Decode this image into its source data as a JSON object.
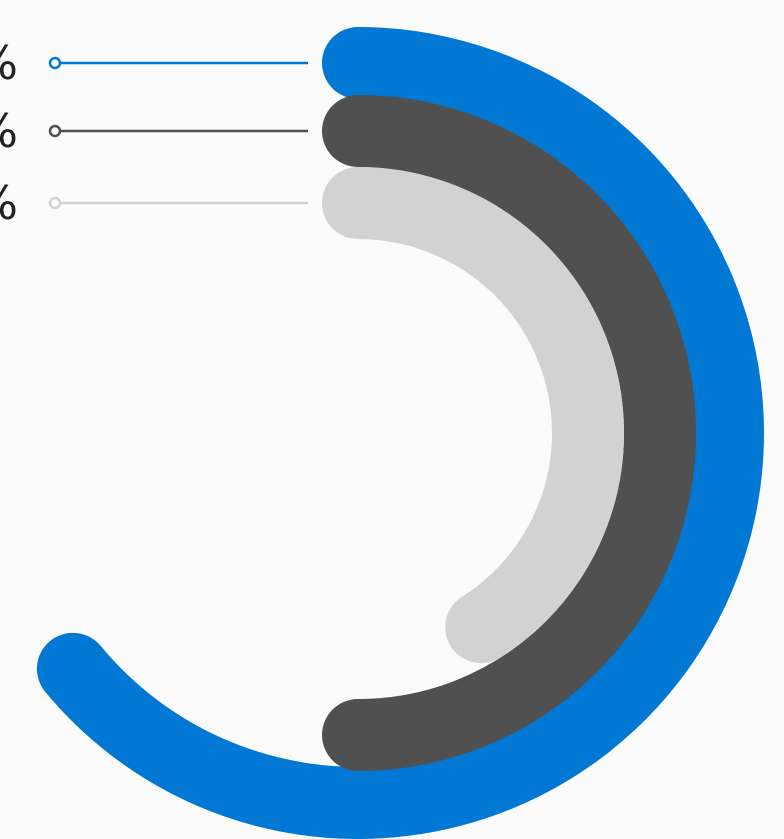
{
  "chart_data": {
    "type": "radial-bar",
    "title": "",
    "series": [
      {
        "label": "%",
        "value": 64,
        "color": "#0078d4"
      },
      {
        "label": "%",
        "value": 50,
        "color": "#505050"
      },
      {
        "label": "%",
        "value": 41,
        "color": "#d2d2d2"
      }
    ],
    "max": 100,
    "legend": "left"
  }
}
